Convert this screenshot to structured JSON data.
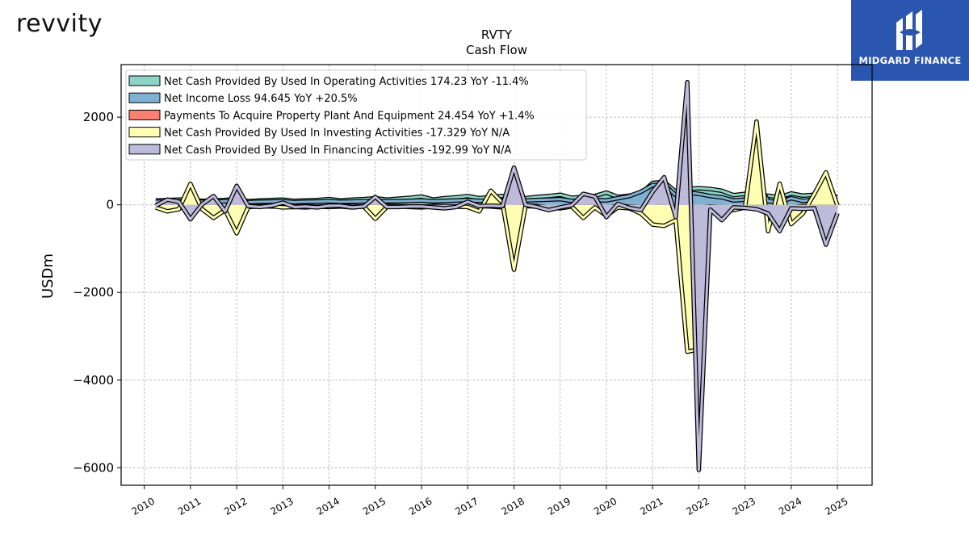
{
  "brand": {
    "logo_text": "revvity",
    "partner_name": "MIDGARD FINANCE"
  },
  "colors": {
    "operating": "#8dd3c7",
    "net_income": "#80b1d3",
    "capex": "#fb8072",
    "investing": "#ffffb3",
    "financing": "#bebada"
  },
  "chart_data": {
    "type": "area",
    "title": "RVTY",
    "subtitle": "Cash Flow",
    "ylabel": "USDm",
    "xlabel": "",
    "ylim": [
      -6400,
      3200
    ],
    "xlim": [
      2009.5,
      2025.75
    ],
    "y_ticks": [
      2000,
      0,
      -2000,
      -4000,
      -6000
    ],
    "y_tick_labels": [
      "2000",
      "0",
      "−2000",
      "−4000",
      "−6000"
    ],
    "x_ticks": [
      2010,
      2011,
      2012,
      2013,
      2014,
      2015,
      2016,
      2017,
      2018,
      2019,
      2020,
      2021,
      2022,
      2023,
      2024,
      2025
    ],
    "x_tick_labels": [
      "2010",
      "2011",
      "2012",
      "2013",
      "2014",
      "2015",
      "2016",
      "2017",
      "2018",
      "2019",
      "2020",
      "2021",
      "2022",
      "2023",
      "2024",
      "2025"
    ],
    "grid": true,
    "legend_position": "top-left",
    "x": [
      2010.25,
      2010.5,
      2010.75,
      2011.0,
      2011.25,
      2011.5,
      2011.75,
      2012.0,
      2012.25,
      2012.5,
      2012.75,
      2013.0,
      2013.25,
      2013.5,
      2013.75,
      2014.0,
      2014.25,
      2014.5,
      2014.75,
      2015.0,
      2015.25,
      2015.5,
      2015.75,
      2016.0,
      2016.25,
      2016.5,
      2016.75,
      2017.0,
      2017.25,
      2017.5,
      2017.75,
      2018.0,
      2018.25,
      2018.5,
      2018.75,
      2019.0,
      2019.25,
      2019.5,
      2019.75,
      2020.0,
      2020.25,
      2020.5,
      2020.75,
      2021.0,
      2021.25,
      2021.5,
      2021.75,
      2022.0,
      2022.25,
      2022.5,
      2022.75,
      2023.0,
      2023.25,
      2023.5,
      2023.75,
      2024.0,
      2024.25,
      2024.5,
      2024.75,
      2025.0
    ],
    "series": [
      {
        "name": "Net Cash Provided By Used In Operating Activities",
        "legend": "Net Cash Provided By Used In Operating Activities  174.23 YoY -11.4%",
        "key": "operating",
        "values": [
          100,
          110,
          120,
          130,
          90,
          100,
          110,
          140,
          80,
          100,
          110,
          120,
          90,
          100,
          110,
          130,
          100,
          120,
          130,
          150,
          120,
          140,
          160,
          190,
          120,
          150,
          170,
          200,
          150,
          180,
          200,
          220,
          150,
          180,
          200,
          230,
          160,
          180,
          200,
          280,
          180,
          210,
          260,
          500,
          520,
          300,
          360,
          380,
          360,
          320,
          220,
          250,
          200,
          210,
          170,
          260,
          210,
          230,
          240,
          174
        ]
      },
      {
        "name": "Net Income Loss",
        "legend": "Net Income Loss  94.645 YoY +20.5%",
        "key": "net_income",
        "values": [
          70,
          75,
          80,
          85,
          70,
          75,
          80,
          90,
          60,
          70,
          75,
          80,
          60,
          70,
          75,
          80,
          70,
          75,
          80,
          90,
          80,
          85,
          90,
          100,
          80,
          90,
          100,
          110,
          90,
          100,
          110,
          120,
          100,
          110,
          120,
          130,
          90,
          100,
          110,
          100,
          150,
          200,
          300,
          450,
          460,
          220,
          280,
          250,
          200,
          170,
          100,
          120,
          600,
          80,
          60,
          150,
          90,
          120,
          130,
          95
        ]
      },
      {
        "name": "Payments To Acquire Property Plant And Equipment",
        "legend": "Payments To Acquire Property Plant And Equipment  24.454 YoY +1.4%",
        "key": "capex",
        "values": [
          -20,
          -30,
          -60,
          -90,
          -30,
          -40,
          -80,
          -110,
          -20,
          -30,
          -40,
          -40,
          -20,
          -30,
          -40,
          -50,
          -20,
          -30,
          -40,
          -50,
          -20,
          -30,
          -40,
          -50,
          -20,
          -30,
          -40,
          -50,
          -30,
          -40,
          -60,
          -70,
          -30,
          -40,
          -60,
          -70,
          -30,
          -40,
          -50,
          -60,
          -30,
          -40,
          -50,
          -60,
          -40,
          -50,
          -60,
          -60,
          -40,
          -50,
          -60,
          -60,
          -40,
          -50,
          -60,
          -60,
          -30,
          -40,
          -50,
          -24
        ]
      },
      {
        "name": "Net Cash Provided By Used In Investing Activities",
        "legend": "Net Cash Provided By Used In Investing Activities  -17.329 YoY N/A",
        "key": "investing",
        "values": [
          -60,
          -150,
          -100,
          480,
          -100,
          -300,
          -120,
          -650,
          -50,
          -40,
          -30,
          -60,
          -50,
          -60,
          -40,
          -50,
          -40,
          -60,
          -40,
          -320,
          -50,
          -40,
          -50,
          -60,
          -40,
          -50,
          -40,
          -50,
          -150,
          320,
          50,
          -1480,
          -20,
          -30,
          -60,
          -80,
          -40,
          -300,
          -60,
          -250,
          -60,
          -80,
          -200,
          -450,
          -480,
          -350,
          -3350,
          -3300,
          -100,
          -80,
          -120,
          -60,
          1900,
          -600,
          480,
          -440,
          -200,
          250,
          740,
          -17
        ]
      },
      {
        "name": "Net Cash Provided By Used In Financing Activities",
        "legend": "Net Cash Provided By Used In Financing Activities  -192.99 YoY N/A",
        "key": "financing",
        "values": [
          -20,
          120,
          70,
          -330,
          10,
          200,
          -150,
          430,
          -30,
          -50,
          -20,
          50,
          -50,
          -40,
          -60,
          -20,
          -20,
          -60,
          -40,
          180,
          -50,
          -50,
          -40,
          -40,
          -60,
          -80,
          -50,
          70,
          -30,
          -20,
          -30,
          850,
          0,
          -50,
          -120,
          -60,
          -10,
          250,
          190,
          -280,
          20,
          -70,
          -120,
          300,
          630,
          -280,
          2800,
          -6050,
          -110,
          -350,
          -60,
          -70,
          -100,
          -200,
          -600,
          -80,
          -90,
          -80,
          -910,
          -193
        ]
      }
    ]
  }
}
